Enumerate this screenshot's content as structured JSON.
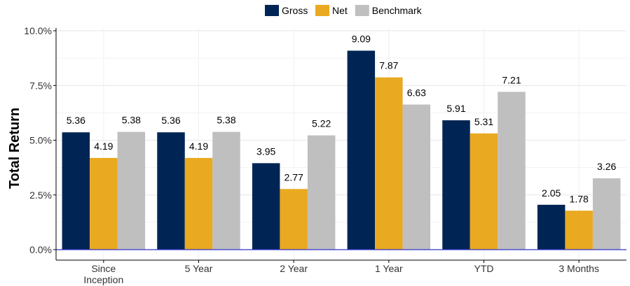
{
  "chart_data": {
    "type": "bar",
    "title": "",
    "xlabel": "",
    "ylabel": "Total Return",
    "categories": [
      "Since\nInception",
      "5 Year",
      "2 Year",
      "1 Year",
      "YTD",
      "3 Months"
    ],
    "series": [
      {
        "name": "Gross",
        "color": "#002554",
        "values": [
          5.36,
          5.36,
          3.95,
          9.09,
          5.91,
          2.05
        ],
        "labels": [
          "5.36",
          "5.36",
          "3.95",
          "9.09",
          "5.91",
          "2.05"
        ]
      },
      {
        "name": "Net",
        "color": "#e9a920",
        "values": [
          4.19,
          4.19,
          2.77,
          7.87,
          5.31,
          1.78
        ],
        "labels": [
          "4.19",
          "4.19",
          "2.77",
          "7.87",
          "5.31",
          "1.78"
        ]
      },
      {
        "name": "Benchmark",
        "color": "#bfbfbf",
        "values": [
          5.38,
          5.38,
          5.22,
          6.63,
          7.21,
          3.26
        ],
        "labels": [
          "5.38",
          "5.38",
          "5.22",
          "6.63",
          "7.21",
          "3.26"
        ]
      }
    ],
    "ylim": [
      0,
      10
    ],
    "yticks": [
      0,
      2.5,
      5,
      7.5,
      10
    ],
    "ytick_labels": [
      "0.0%",
      "2.5%",
      "5.0%",
      "7.5%",
      "10.0%"
    ],
    "grid": true,
    "legend": "top-center",
    "baseline_color": "#3333cc"
  }
}
